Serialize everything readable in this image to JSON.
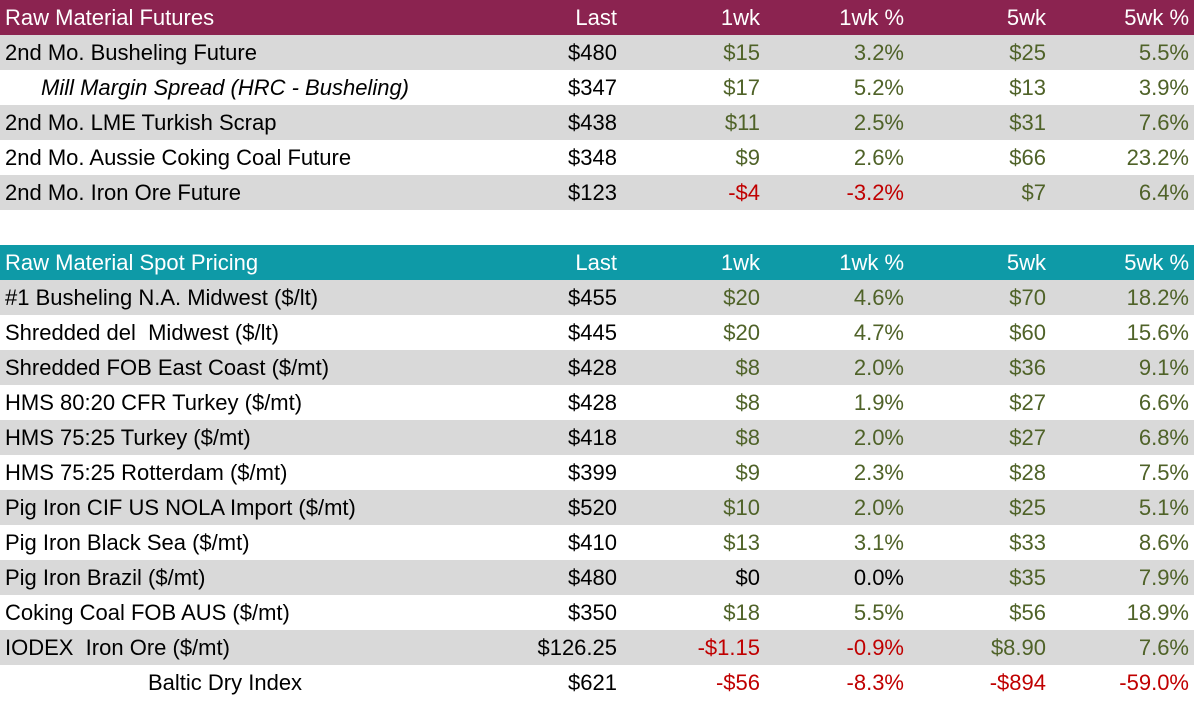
{
  "futures": {
    "header": {
      "title": "Raw Material Futures",
      "last": "Last",
      "w1": "1wk",
      "w1p": "1wk %",
      "w5": "5wk",
      "w5p": "5wk %"
    },
    "rows": [
      {
        "name": "2nd Mo. Busheling Future",
        "last": "$480",
        "w1": "$15",
        "w1p": "3.2%",
        "w5": "$25",
        "w5p": "5.5%"
      },
      {
        "name": "Mill Margin Spread (HRC - Busheling)",
        "last": "$347",
        "w1": "$17",
        "w1p": "5.2%",
        "w5": "$13",
        "w5p": "3.9%"
      },
      {
        "name": "2nd Mo. LME Turkish Scrap",
        "last": "$438",
        "w1": "$11",
        "w1p": "2.5%",
        "w5": "$31",
        "w5p": "7.6%"
      },
      {
        "name": "2nd Mo. Aussie Coking Coal Future",
        "last": "$348",
        "w1": "$9",
        "w1p": "2.6%",
        "w5": "$66",
        "w5p": "23.2%"
      },
      {
        "name": "2nd Mo. Iron Ore Future",
        "last": "$123",
        "w1": "-$4",
        "w1p": "-3.2%",
        "w5": "$7",
        "w5p": "6.4%"
      }
    ]
  },
  "spot": {
    "header": {
      "title": "Raw Material Spot Pricing",
      "last": "Last",
      "w1": "1wk",
      "w1p": "1wk %",
      "w5": "5wk",
      "w5p": "5wk %"
    },
    "rows": [
      {
        "name": "#1 Busheling N.A. Midwest ($/lt)",
        "last": "$455",
        "w1": "$20",
        "w1p": "4.6%",
        "w5": "$70",
        "w5p": "18.2%"
      },
      {
        "name": "Shredded del  Midwest ($/lt)",
        "last": "$445",
        "w1": "$20",
        "w1p": "4.7%",
        "w5": "$60",
        "w5p": "15.6%"
      },
      {
        "name": "Shredded FOB East Coast ($/mt)",
        "last": "$428",
        "w1": "$8",
        "w1p": "2.0%",
        "w5": "$36",
        "w5p": "9.1%"
      },
      {
        "name": "HMS 80:20 CFR Turkey ($/mt)",
        "last": "$428",
        "w1": "$8",
        "w1p": "1.9%",
        "w5": "$27",
        "w5p": "6.6%"
      },
      {
        "name": "HMS 75:25 Turkey ($/mt)",
        "last": "$418",
        "w1": "$8",
        "w1p": "2.0%",
        "w5": "$27",
        "w5p": "6.8%"
      },
      {
        "name": "HMS 75:25 Rotterdam ($/mt)",
        "last": "$399",
        "w1": "$9",
        "w1p": "2.3%",
        "w5": "$28",
        "w5p": "7.5%"
      },
      {
        "name": "Pig Iron CIF US NOLA Import ($/mt)",
        "last": "$520",
        "w1": "$10",
        "w1p": "2.0%",
        "w5": "$25",
        "w5p": "5.1%"
      },
      {
        "name": "Pig Iron Black Sea ($/mt)",
        "last": "$410",
        "w1": "$13",
        "w1p": "3.1%",
        "w5": "$33",
        "w5p": "8.6%"
      },
      {
        "name": "Pig Iron Brazil ($/mt)",
        "last": "$480",
        "w1": "$0",
        "w1p": "0.0%",
        "w5": "$35",
        "w5p": "7.9%"
      },
      {
        "name": "Coking Coal FOB AUS ($/mt)",
        "last": "$350",
        "w1": "$18",
        "w1p": "5.5%",
        "w5": "$56",
        "w5p": "18.9%"
      },
      {
        "name": "IODEX  Iron Ore ($/mt)",
        "last": "$126.25",
        "w1": "-$1.15",
        "w1p": "-0.9%",
        "w5": "$8.90",
        "w5p": "7.6%"
      },
      {
        "name": "Baltic Dry Index",
        "last": "$621",
        "w1": "-$56",
        "w1p": "-8.3%",
        "w5": "-$894",
        "w5p": "-59.0%"
      }
    ]
  },
  "colors": {
    "futures_header": "#8b2350",
    "spot_header": "#0e9aa7",
    "positive": "#4f6228",
    "negative": "#c00000",
    "row_shade": "#d9d9d9"
  }
}
